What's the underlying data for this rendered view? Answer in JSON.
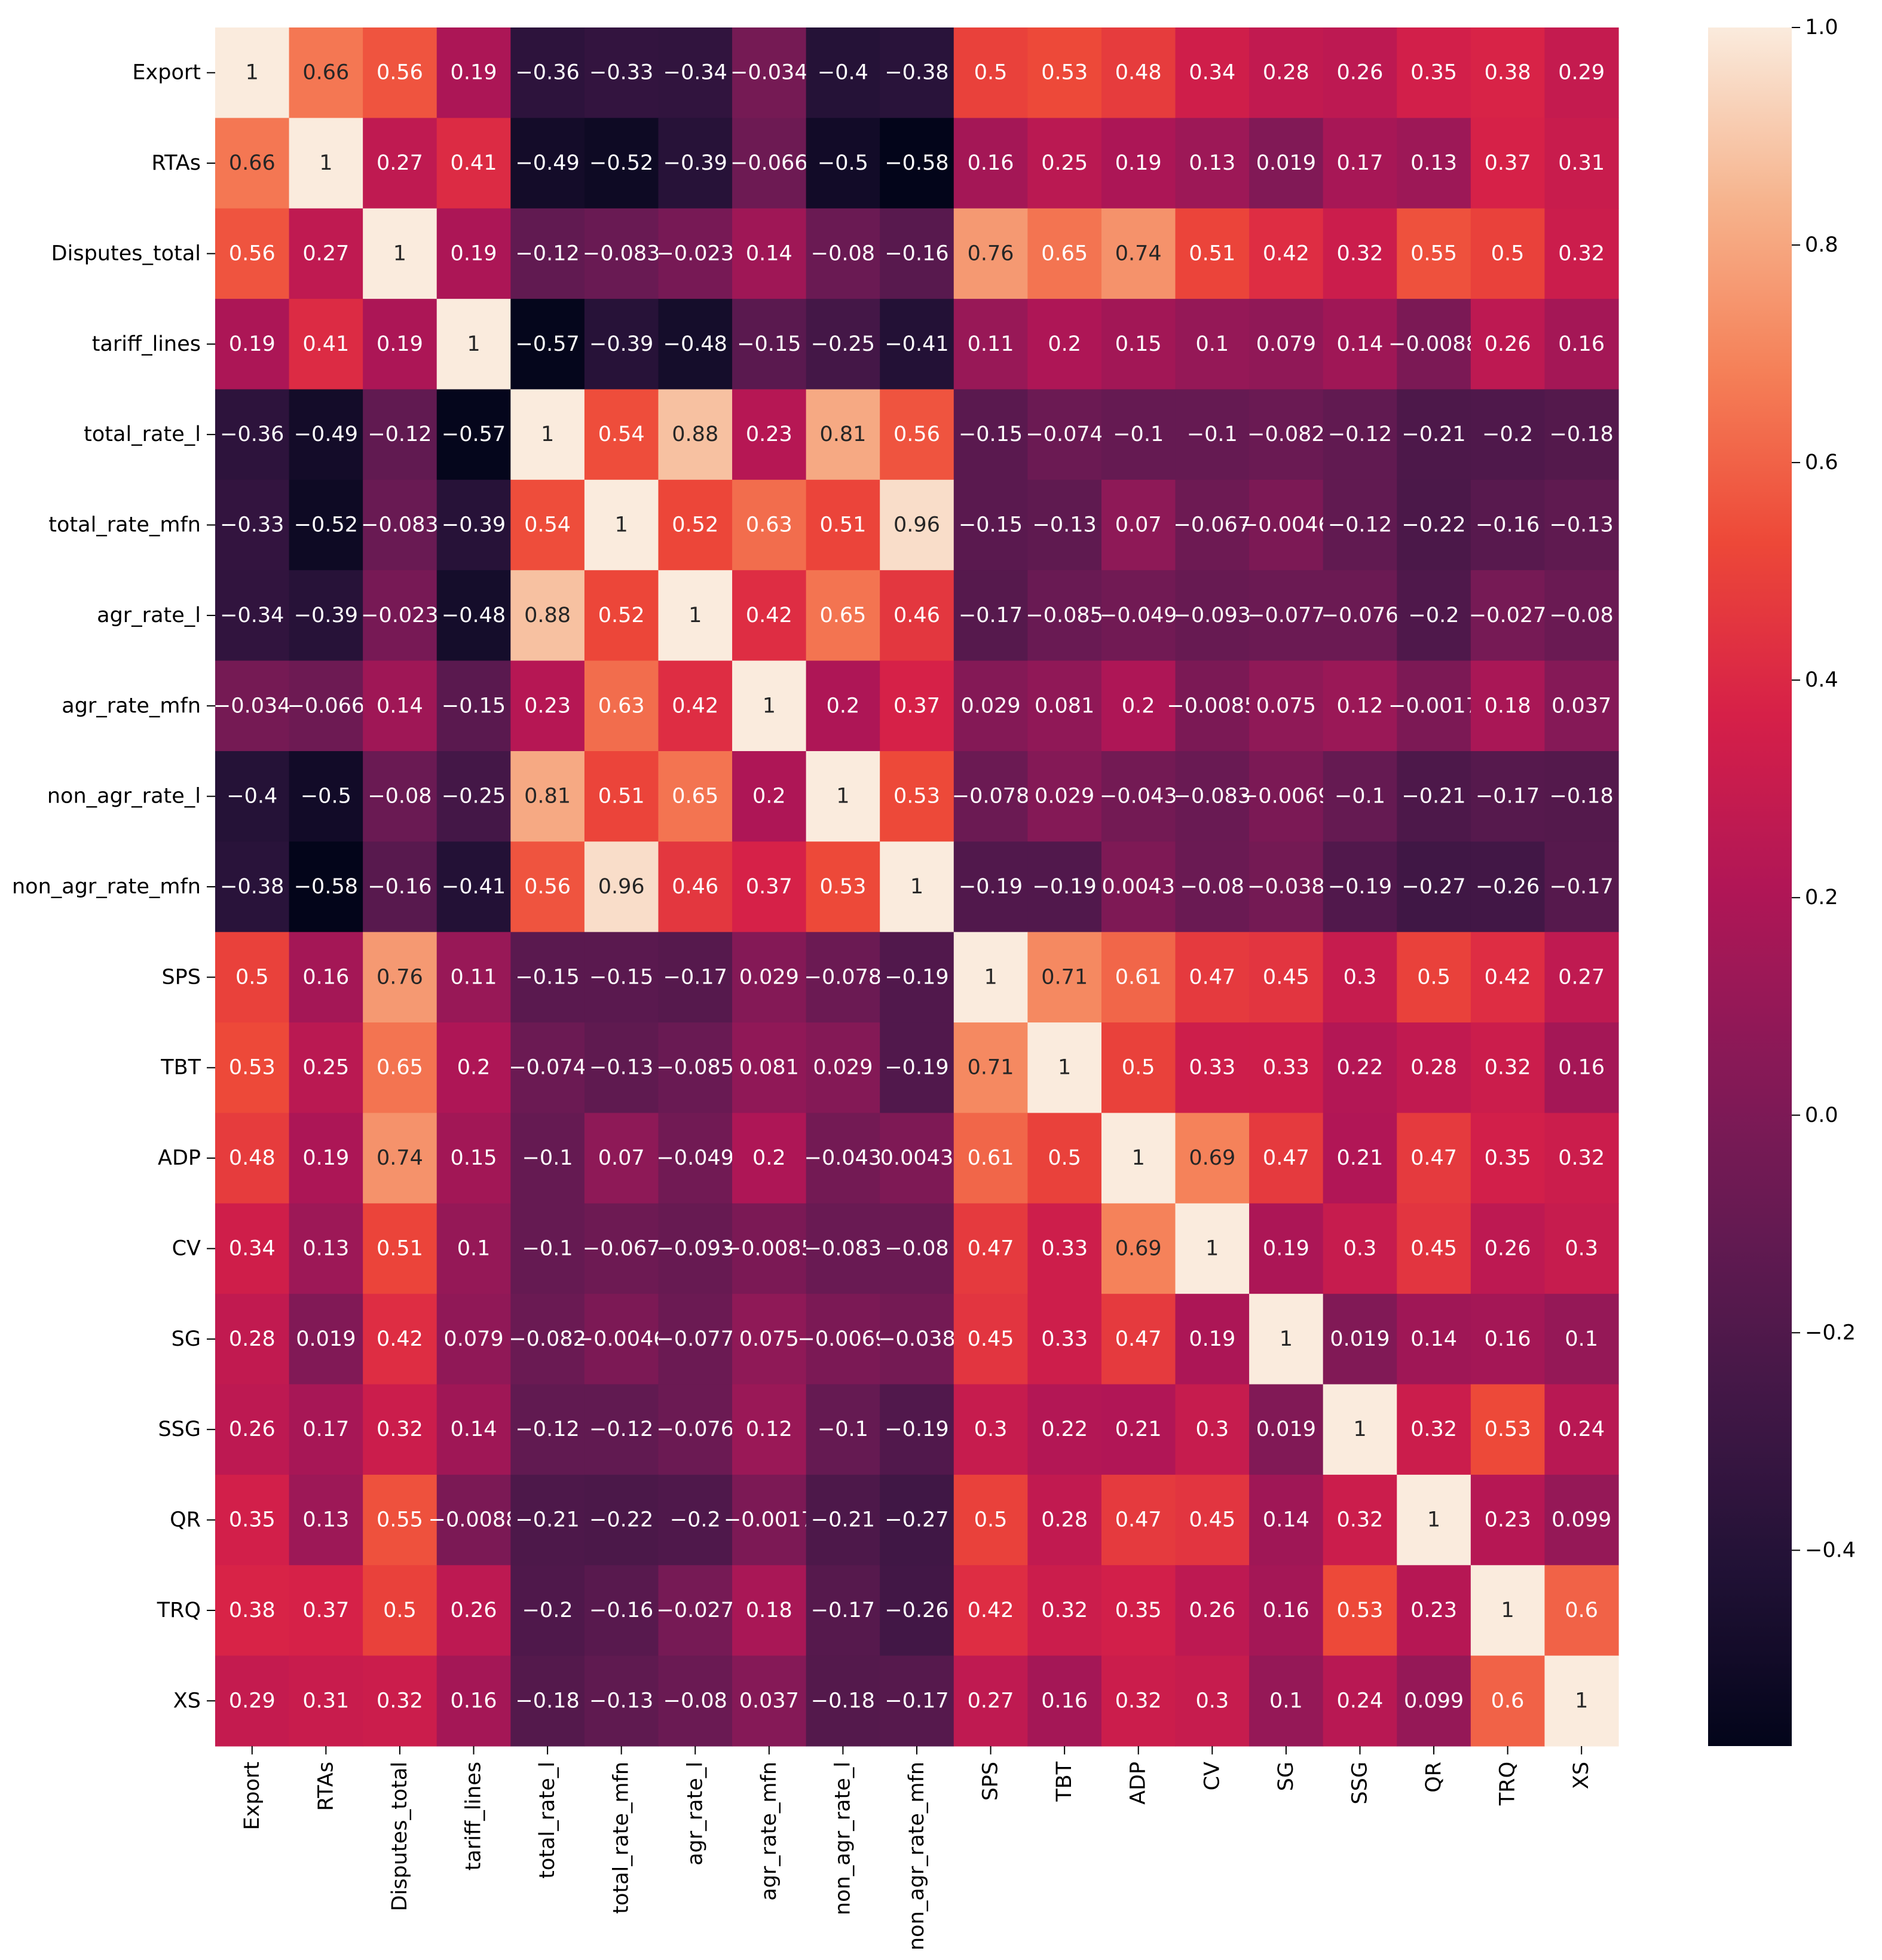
{
  "chart_data": {
    "type": "heatmap",
    "title": "",
    "xlabel": "",
    "ylabel": "",
    "row_labels": [
      "Export",
      "RTAs",
      "Disputes_total",
      "tariff_lines",
      "total_rate_l",
      "total_rate_mfn",
      "agr_rate_l",
      "agr_rate_mfn",
      "non_agr_rate_l",
      "non_agr_rate_mfn",
      "SPS",
      "TBT",
      "ADP",
      "CV",
      "SG",
      "SSG",
      "QR",
      "TRQ",
      "XS"
    ],
    "col_labels": [
      "Export",
      "RTAs",
      "Disputes_total",
      "tariff_lines",
      "total_rate_l",
      "total_rate_mfn",
      "agr_rate_l",
      "agr_rate_mfn",
      "non_agr_rate_l",
      "non_agr_rate_mfn",
      "SPS",
      "TBT",
      "ADP",
      "CV",
      "SG",
      "SSG",
      "QR",
      "TRQ",
      "XS"
    ],
    "values": [
      [
        1,
        0.66,
        0.56,
        0.19,
        -0.36,
        -0.33,
        -0.34,
        -0.034,
        -0.4,
        -0.38,
        0.5,
        0.53,
        0.48,
        0.34,
        0.28,
        0.26,
        0.35,
        0.38,
        0.29
      ],
      [
        0.66,
        1,
        0.27,
        0.41,
        -0.49,
        -0.52,
        -0.39,
        -0.066,
        -0.5,
        -0.58,
        0.16,
        0.25,
        0.19,
        0.13,
        0.019,
        0.17,
        0.13,
        0.37,
        0.31
      ],
      [
        0.56,
        0.27,
        1,
        0.19,
        -0.12,
        -0.083,
        -0.023,
        0.14,
        -0.08,
        -0.16,
        0.76,
        0.65,
        0.74,
        0.51,
        0.42,
        0.32,
        0.55,
        0.5,
        0.32
      ],
      [
        0.19,
        0.41,
        0.19,
        1,
        -0.57,
        -0.39,
        -0.48,
        -0.15,
        -0.25,
        -0.41,
        0.11,
        0.2,
        0.15,
        0.1,
        0.079,
        0.14,
        -0.0088,
        0.26,
        0.16
      ],
      [
        -0.36,
        -0.49,
        -0.12,
        -0.57,
        1,
        0.54,
        0.88,
        0.23,
        0.81,
        0.56,
        -0.15,
        -0.074,
        -0.1,
        -0.1,
        -0.082,
        -0.12,
        -0.21,
        -0.2,
        -0.18
      ],
      [
        -0.33,
        -0.52,
        -0.083,
        -0.39,
        0.54,
        1,
        0.52,
        0.63,
        0.51,
        0.96,
        -0.15,
        -0.13,
        0.07,
        -0.067,
        -0.0046,
        -0.12,
        -0.22,
        -0.16,
        -0.13
      ],
      [
        -0.34,
        -0.39,
        -0.023,
        -0.48,
        0.88,
        0.52,
        1,
        0.42,
        0.65,
        0.46,
        -0.17,
        -0.085,
        -0.049,
        -0.093,
        -0.077,
        -0.076,
        -0.2,
        -0.027,
        -0.08
      ],
      [
        -0.034,
        -0.066,
        0.14,
        -0.15,
        0.23,
        0.63,
        0.42,
        1,
        0.2,
        0.37,
        0.029,
        0.081,
        0.2,
        -0.0085,
        0.075,
        0.12,
        -0.0017,
        0.18,
        0.037
      ],
      [
        -0.4,
        -0.5,
        -0.08,
        -0.25,
        0.81,
        0.51,
        0.65,
        0.2,
        1,
        0.53,
        -0.078,
        0.029,
        -0.043,
        -0.083,
        -0.0069,
        -0.1,
        -0.21,
        -0.17,
        -0.18
      ],
      [
        -0.38,
        -0.58,
        -0.16,
        -0.41,
        0.56,
        0.96,
        0.46,
        0.37,
        0.53,
        1,
        -0.19,
        -0.19,
        0.0043,
        -0.08,
        -0.038,
        -0.19,
        -0.27,
        -0.26,
        -0.17
      ],
      [
        0.5,
        0.16,
        0.76,
        0.11,
        -0.15,
        -0.15,
        -0.17,
        0.029,
        -0.078,
        -0.19,
        1,
        0.71,
        0.61,
        0.47,
        0.45,
        0.3,
        0.5,
        0.42,
        0.27
      ],
      [
        0.53,
        0.25,
        0.65,
        0.2,
        -0.074,
        -0.13,
        -0.085,
        0.081,
        0.029,
        -0.19,
        0.71,
        1,
        0.5,
        0.33,
        0.33,
        0.22,
        0.28,
        0.32,
        0.16
      ],
      [
        0.48,
        0.19,
        0.74,
        0.15,
        -0.1,
        0.07,
        -0.049,
        0.2,
        -0.043,
        0.0043,
        0.61,
        0.5,
        1,
        0.69,
        0.47,
        0.21,
        0.47,
        0.35,
        0.32
      ],
      [
        0.34,
        0.13,
        0.51,
        0.1,
        -0.1,
        -0.067,
        -0.093,
        -0.0085,
        -0.083,
        -0.08,
        0.47,
        0.33,
        0.69,
        1,
        0.19,
        0.3,
        0.45,
        0.26,
        0.3
      ],
      [
        0.28,
        0.019,
        0.42,
        0.079,
        -0.082,
        -0.0046,
        -0.077,
        0.075,
        -0.0069,
        -0.038,
        0.45,
        0.33,
        0.47,
        0.19,
        1,
        0.019,
        0.14,
        0.16,
        0.1
      ],
      [
        0.26,
        0.17,
        0.32,
        0.14,
        -0.12,
        -0.12,
        -0.076,
        0.12,
        -0.1,
        -0.19,
        0.3,
        0.22,
        0.21,
        0.3,
        0.019,
        1,
        0.32,
        0.53,
        0.24
      ],
      [
        0.35,
        0.13,
        0.55,
        -0.0088,
        -0.21,
        -0.22,
        -0.2,
        -0.0017,
        -0.21,
        -0.27,
        0.5,
        0.28,
        0.47,
        0.45,
        0.14,
        0.32,
        1,
        0.23,
        0.099
      ],
      [
        0.38,
        0.37,
        0.5,
        0.26,
        -0.2,
        -0.16,
        -0.027,
        0.18,
        -0.17,
        -0.26,
        0.42,
        0.32,
        0.35,
        0.26,
        0.16,
        0.53,
        0.23,
        1,
        0.6
      ],
      [
        0.29,
        0.31,
        0.32,
        0.16,
        -0.18,
        -0.13,
        -0.08,
        0.037,
        -0.18,
        -0.17,
        0.27,
        0.16,
        0.32,
        0.3,
        0.1,
        0.24,
        0.099,
        0.6,
        1
      ]
    ],
    "colormap": "rocket",
    "vmin": -0.58,
    "vmax": 1.0,
    "colorbar_ticks": [
      1.0,
      0.8,
      0.6,
      0.4,
      0.2,
      0.0,
      -0.2,
      -0.4
    ],
    "colorbar_tick_labels": [
      "1.0",
      "0.8",
      "0.6",
      "0.4",
      "0.2",
      "0.0",
      "−0.2",
      "−0.4"
    ],
    "legend": "right"
  }
}
